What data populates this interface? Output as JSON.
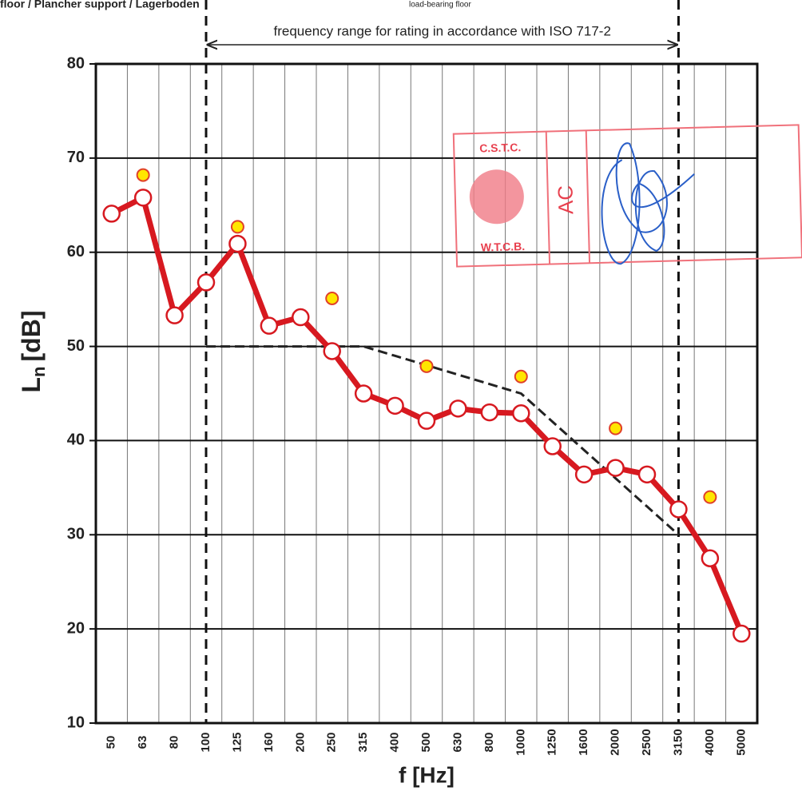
{
  "chart_data": {
    "type": "line",
    "header": "floor / Plancher support / Lagerboden",
    "header_note": "load-bearing floor",
    "annotation": "frequency range for rating in accordance with ISO 717-2",
    "stamp": [
      "C.S.T.C.",
      "W.T.C.B.",
      "AC"
    ],
    "ylabel": {
      "symbol": "L",
      "subscript": "n",
      "unit": "[dB]"
    },
    "xlabel": "f [Hz]",
    "categories": [
      "50",
      "63",
      "80",
      "100",
      "125",
      "160",
      "200",
      "250",
      "315",
      "400",
      "500",
      "630",
      "800",
      "1000",
      "1250",
      "1600",
      "2000",
      "2500",
      "3150",
      "4000",
      "5000"
    ],
    "series": [
      {
        "name": "Ln",
        "color": "#d71920",
        "style": "line-markers",
        "values": [
          64.1,
          65.8,
          53.3,
          56.8,
          60.9,
          52.2,
          53.1,
          49.5,
          45.0,
          43.7,
          42.1,
          43.4,
          43.0,
          42.9,
          39.4,
          36.4,
          37.1,
          36.4,
          32.7,
          27.5,
          19.5
        ]
      },
      {
        "name": "octave",
        "color": "#ffe600",
        "style": "dots",
        "values": [
          null,
          68.2,
          null,
          null,
          62.7,
          null,
          null,
          55.1,
          null,
          null,
          47.9,
          null,
          null,
          46.8,
          null,
          null,
          41.3,
          null,
          null,
          34.0,
          null
        ]
      },
      {
        "name": "reference",
        "color": "#222222",
        "style": "dashed",
        "values": [
          null,
          null,
          null,
          50,
          50,
          50,
          50,
          50,
          50,
          49,
          48,
          47,
          46,
          45,
          42,
          39,
          36,
          33,
          30,
          null,
          null
        ]
      }
    ],
    "ylim": [
      10,
      80
    ],
    "yticks": [
      10,
      20,
      30,
      40,
      50,
      60,
      70,
      80
    ],
    "grid": true
  }
}
